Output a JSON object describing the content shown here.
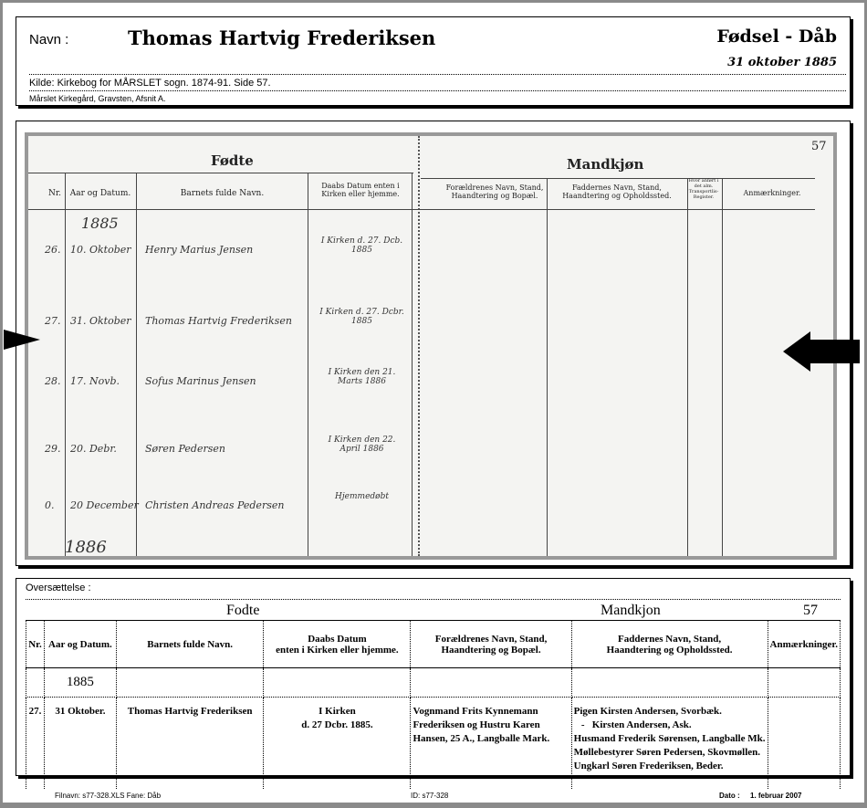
{
  "header": {
    "name_label": "Navn :",
    "name": "Thomas Hartvig Frederiksen",
    "record_type": "Fødsel - Dåb",
    "date": "31 oktober 1885",
    "source": "Kilde:   Kirkebog for MÅRSLET sogn. 1874-91. Side 57.",
    "grave": "Mårslet Kirkegård, Gravsten, Afsnit A."
  },
  "scan": {
    "left_title": "Fødte",
    "right_title": "Mandkjøn",
    "page": "57",
    "columns": [
      "Nr.",
      "Aar og Datum.",
      "Barnets fulde Navn.",
      "Daabs Datum enten i Kirken eller hjemme.",
      "Forældrenes Navn, Stand, Haandtering og Bopæl.",
      "Faddernes Navn, Stand, Haandtering og Opholdssted.",
      "Hvor anført i det alm. Transportlis-Register.",
      "Anmærkninger."
    ],
    "year_top": "1885",
    "year_bottom": "1886",
    "rows": [
      {
        "nr": "26.",
        "date": "10. Oktober",
        "name": "Henry Marius Jensen",
        "bapt": "I Kirken d. 27. Dcb. 1885"
      },
      {
        "nr": "27.",
        "date": "31. Oktober",
        "name": "Thomas Hartvig Frederiksen",
        "bapt": "I Kirken d. 27. Dcbr. 1885"
      },
      {
        "nr": "28.",
        "date": "17. Novb.",
        "name": "Sofus Marinus Jensen",
        "bapt": "I Kirken den 21. Marts 1886"
      },
      {
        "nr": "29.",
        "date": "20. Debr.",
        "name": "Søren Pedersen",
        "bapt": "I Kirken den 22. April 1886"
      },
      {
        "nr": "0.",
        "date": "20 December",
        "name": "Christen Andreas Pedersen",
        "bapt": "Hjemmedøbt"
      }
    ]
  },
  "translation": {
    "label": "Oversættelse :",
    "left_title": "Fodte",
    "right_title": "Mandkjon",
    "page": "57",
    "columns": [
      "Nr.",
      "Aar og Datum.",
      "Barnets fulde Navn.",
      "Daabs Datum\nenten i Kirken eller hjemme.",
      "Forældrenes Navn, Stand,\nHaandtering og Bopæl.",
      "Faddernes Navn, Stand,\nHaandtering og Opholdssted.",
      "Anmærkninger."
    ],
    "year": "1885",
    "row": {
      "nr": "27.",
      "date": "31 Oktober.",
      "name": "Thomas Hartvig Frederiksen",
      "baptism": [
        "I Kirken",
        "d. 27 Dcbr. 1885."
      ],
      "parents": [
        "Vognmand Frits Kynnemann",
        "Frederiksen og Hustru Karen",
        "Hansen, 25 A., Langballe Mark."
      ],
      "godparents": [
        "Pigen Kirsten Andersen, Svorbæk.",
        "   -   Kirsten Andersen, Ask.",
        "Husmand Frederik Sørensen, Langballe Mk.",
        "Møllebestyrer Søren Pedersen, Skovmøllen.",
        "Ungkarl Søren Frederiksen, Beder."
      ],
      "remarks": ""
    }
  },
  "footer": {
    "filename": "Filnavn:  s77-328.XLS    Fane: Dåb",
    "id": "ID:  s77-328",
    "date_label": "Dato :",
    "date": "1. februar 2007"
  },
  "colors": {
    "border": "#8a8a8a",
    "paper": "#f4f4f2",
    "marker": "#2a8a2a"
  }
}
